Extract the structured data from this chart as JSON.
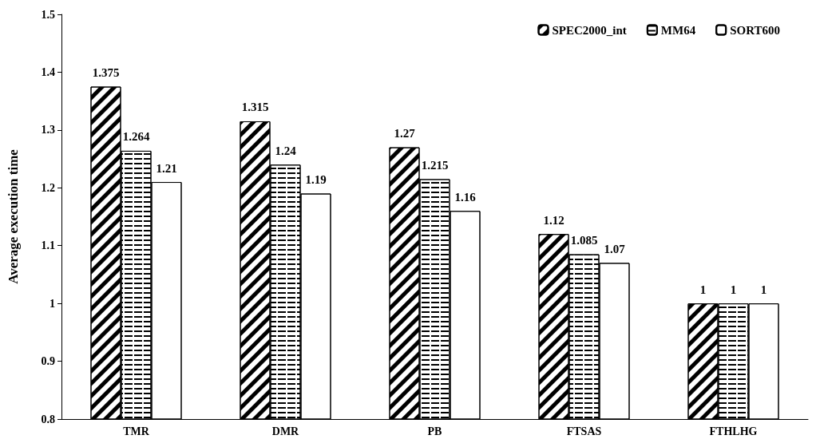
{
  "chart_data": {
    "type": "bar",
    "ylabel": "Average execution time",
    "categories": [
      "TMR",
      "DMR",
      "PB",
      "FTSAS",
      "FTHLHG"
    ],
    "series": [
      {
        "name": "SPEC2000_int",
        "color": "#ffffff",
        "values": [
          1.375,
          1.315,
          1.27,
          1.12,
          1
        ]
      },
      {
        "name": "MM64",
        "color": "#ffffff",
        "values": [
          1.264,
          1.24,
          1.215,
          1.085,
          1
        ]
      },
      {
        "name": "SORT600",
        "color": "#ffffff",
        "values": [
          1.21,
          1.19,
          1.16,
          1.07,
          1
        ]
      }
    ],
    "ylim": [
      0.8,
      1.5
    ],
    "yticks": [
      0.8,
      0.9,
      1,
      1.1,
      1.2,
      1.3,
      1.4,
      1.5
    ],
    "grid": false,
    "legend": "top right",
    "data_labels": true
  }
}
